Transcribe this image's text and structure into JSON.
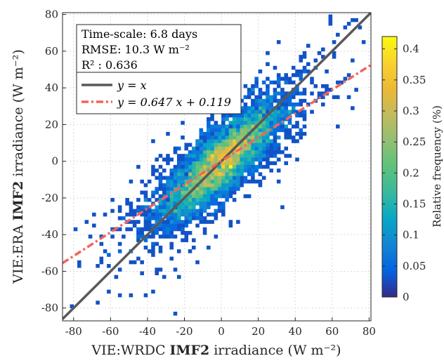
{
  "chart_data": {
    "type": "heatmap",
    "subtype": "2D density scatter with regression lines",
    "xlabel": {
      "prefix": "VIE:WRDC ",
      "bold": "IMF2",
      "suffix": " irradiance ",
      "unit": "(W m⁻²)"
    },
    "ylabel": {
      "prefix": "VIE:ERA ",
      "bold": "IMF2",
      "suffix": " irradiance ",
      "unit": "(W m⁻²)"
    },
    "xlim": [
      -86,
      81
    ],
    "ylim": [
      -87,
      81
    ],
    "x_ticks": [
      -80,
      -60,
      -40,
      -20,
      0,
      20,
      40,
      60,
      80
    ],
    "y_ticks": [
      -80,
      -60,
      -40,
      -20,
      0,
      20,
      40,
      60,
      80
    ],
    "grid": true,
    "stats": {
      "time_scale": "Time-scale: 6.8 days",
      "rmse": "RMSE: 10.3 W m⁻²",
      "r2": "R² : 0.636"
    },
    "legend": {
      "placement": "top-left",
      "entries": [
        {
          "label": "y = x",
          "color": "#595959",
          "style": "solid"
        },
        {
          "label": "y = 0.647 x + 0.119",
          "color": "#f2645a",
          "style": "dash-dot"
        }
      ]
    },
    "lines": [
      {
        "name": "identity",
        "slope": 1.0,
        "intercept": 0.0,
        "color": "#595959"
      },
      {
        "name": "fit",
        "slope": 0.647,
        "intercept": 0.119,
        "color": "#f2645a"
      }
    ],
    "density": {
      "correlation": 0.8,
      "std_x": 16,
      "bin_size": 2,
      "max_value": 0.42
    },
    "colorbar": {
      "label": "Relative frequency (%)",
      "range": [
        0,
        0.42
      ],
      "ticks": [
        0,
        0.05,
        0.1,
        0.15,
        0.2,
        0.25,
        0.3,
        0.35,
        0.4
      ],
      "tick_labels": [
        "0",
        "0.05",
        "0.1",
        "0.15",
        "0.2",
        "0.25",
        "0.3",
        "0.35",
        "0.4"
      ],
      "colormap": "parula"
    }
  }
}
